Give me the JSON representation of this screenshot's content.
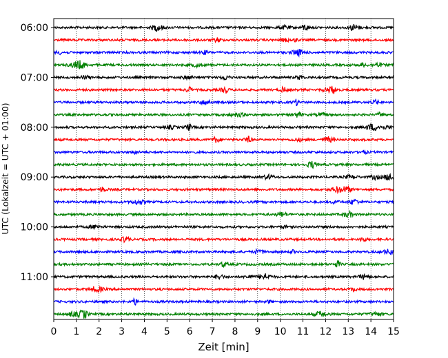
{
  "chart_data": {
    "type": "line",
    "title": "",
    "xlabel": "Zeit  [min]",
    "ylabel": "UTC (Lokalzeit = UTC + 01:00)",
    "xlim": [
      0,
      15
    ],
    "x_ticks": [
      "0",
      "1",
      "2",
      "3",
      "4",
      "5",
      "6",
      "7",
      "8",
      "9",
      "10",
      "11",
      "12",
      "13",
      "14",
      "15"
    ],
    "y_tick_labels": [
      "06:00",
      "07:00",
      "08:00",
      "09:00",
      "10:00",
      "11:00"
    ],
    "grid": "vertical dotted lines at each minute",
    "legend": "none",
    "trace_interval_min": 15,
    "trace_starts_utc": [
      "06:00",
      "06:15",
      "06:30",
      "06:45",
      "07:00",
      "07:15",
      "07:30",
      "07:45",
      "08:00",
      "08:15",
      "08:30",
      "08:45",
      "09:00",
      "09:15",
      "09:30",
      "09:45",
      "10:00",
      "10:15",
      "10:30",
      "10:45",
      "11:00",
      "11:15",
      "11:30",
      "11:45"
    ],
    "series_colors": [
      "#000000",
      "#ff0000",
      "#0000ff",
      "#008000"
    ]
  }
}
